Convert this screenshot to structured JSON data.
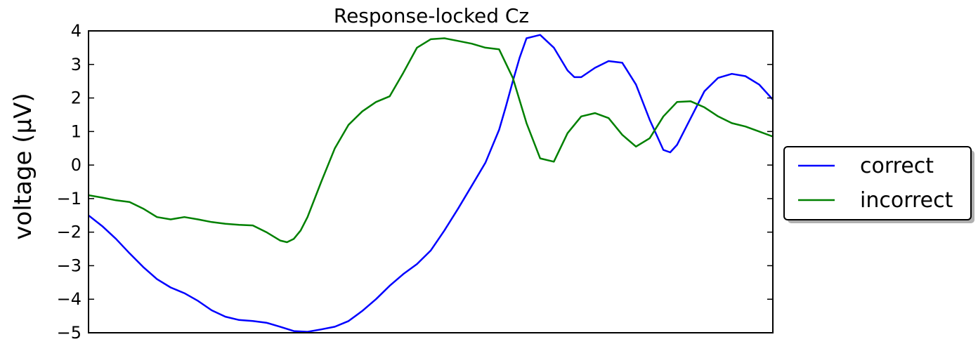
{
  "chart_data": {
    "type": "line",
    "title": "Response-locked Cz",
    "xlabel": "",
    "ylabel": "voltage (µV)",
    "xlim": [
      0,
      100
    ],
    "ylim": [
      -5,
      4
    ],
    "yticks": [
      4,
      3,
      2,
      1,
      0,
      -1,
      -2,
      -3,
      -4,
      -5
    ],
    "ytick_labels": [
      "4",
      "3",
      "2",
      "1",
      "0",
      "−1",
      "−2",
      "−3",
      "−4",
      "−5"
    ],
    "grid": false,
    "legend_position": "right",
    "series": [
      {
        "name": "correct",
        "color": "#0000ff",
        "x": [
          0,
          2,
          4,
          6,
          8,
          10,
          12,
          14,
          16,
          18,
          20,
          22,
          24,
          26,
          28,
          30,
          32,
          34,
          36,
          38,
          40,
          42,
          44,
          46,
          48,
          50,
          52,
          54,
          56,
          58,
          60,
          61,
          62,
          63,
          64,
          66,
          68,
          70,
          71,
          72,
          74,
          76,
          78,
          80,
          82,
          84,
          85,
          86,
          88,
          90,
          92,
          94,
          96,
          98,
          100
        ],
        "y": [
          -1.5,
          -1.82,
          -2.2,
          -2.63,
          -3.04,
          -3.4,
          -3.65,
          -3.82,
          -4.05,
          -4.33,
          -4.52,
          -4.62,
          -4.65,
          -4.7,
          -4.82,
          -4.95,
          -4.97,
          -4.9,
          -4.82,
          -4.65,
          -4.35,
          -4.0,
          -3.6,
          -3.25,
          -2.95,
          -2.55,
          -1.95,
          -1.3,
          -0.62,
          0.07,
          1.05,
          1.75,
          2.5,
          3.2,
          3.78,
          3.88,
          3.5,
          2.82,
          2.62,
          2.62,
          2.9,
          3.1,
          3.05,
          2.4,
          1.35,
          0.45,
          0.38,
          0.6,
          1.4,
          2.2,
          2.6,
          2.72,
          2.65,
          2.4,
          1.95
        ]
      },
      {
        "name": "incorrect",
        "color": "#008000",
        "x": [
          0,
          2,
          4,
          6,
          8,
          10,
          12,
          14,
          16,
          18,
          20,
          22,
          24,
          26,
          28,
          29,
          30,
          31,
          32,
          34,
          36,
          38,
          40,
          42,
          44,
          46,
          48,
          50,
          52,
          54,
          56,
          58,
          60,
          62,
          64,
          66,
          68,
          70,
          72,
          74,
          76,
          78,
          80,
          82,
          84,
          86,
          88,
          90,
          92,
          94,
          96,
          98,
          100
        ],
        "y": [
          -0.9,
          -0.97,
          -1.05,
          -1.1,
          -1.3,
          -1.55,
          -1.62,
          -1.55,
          -1.62,
          -1.7,
          -1.75,
          -1.78,
          -1.8,
          -2.0,
          -2.25,
          -2.3,
          -2.2,
          -1.95,
          -1.55,
          -0.5,
          0.5,
          1.2,
          1.6,
          1.88,
          2.05,
          2.75,
          3.5,
          3.75,
          3.78,
          3.7,
          3.62,
          3.5,
          3.45,
          2.6,
          1.25,
          0.2,
          0.1,
          0.95,
          1.45,
          1.55,
          1.4,
          0.9,
          0.55,
          0.8,
          1.45,
          1.88,
          1.9,
          1.72,
          1.45,
          1.25,
          1.15,
          1.0,
          0.85
        ]
      }
    ]
  }
}
